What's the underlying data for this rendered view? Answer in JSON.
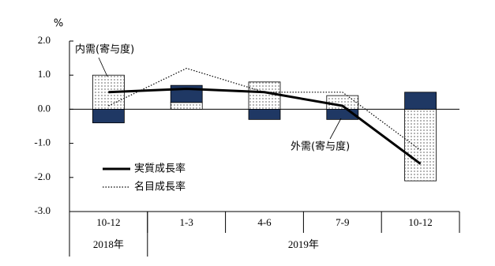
{
  "chart_data": {
    "type": "bar",
    "unit_label": "%",
    "categories": [
      "10-12",
      "1-3",
      "4-6",
      "7-9",
      "10-12"
    ],
    "x_groups": [
      {
        "label": "2018年",
        "count": 1
      },
      {
        "label": "2019年",
        "count": 4
      }
    ],
    "series": [
      {
        "name": "内需(寄与度)",
        "kind": "bar",
        "color": "#000000",
        "values": [
          1.0,
          0.2,
          0.8,
          0.4,
          -2.1
        ]
      },
      {
        "name": "外需(寄与度)",
        "kind": "bar",
        "color": "#1f3864",
        "values": [
          -0.4,
          0.5,
          -0.3,
          -0.3,
          0.5
        ]
      },
      {
        "name": "実質成長率",
        "kind": "line",
        "color": "#000000",
        "values": [
          0.5,
          0.6,
          0.5,
          0.1,
          -1.6
        ]
      },
      {
        "name": "名目成長率",
        "kind": "line",
        "color": "#000000",
        "dashed": true,
        "values": [
          0.1,
          1.2,
          0.5,
          0.5,
          -1.2
        ]
      }
    ],
    "ylim": [
      -3.0,
      2.0
    ],
    "yticks": [
      {
        "value": 2.0,
        "label": "2.0"
      },
      {
        "value": 1.0,
        "label": "1.0"
      },
      {
        "value": 0.0,
        "label": "0.0"
      },
      {
        "value": -1.0,
        "label": "-1.0"
      },
      {
        "value": -2.0,
        "label": "-2.0"
      },
      {
        "value": -3.0,
        "label": "-3.0"
      }
    ]
  }
}
